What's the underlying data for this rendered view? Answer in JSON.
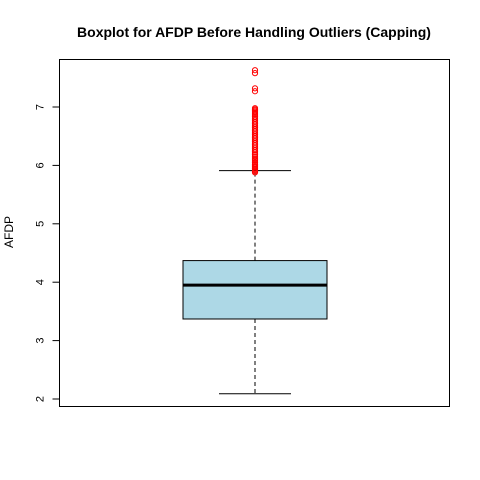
{
  "chart_data": {
    "type": "boxplot",
    "title": "Boxplot for AFDP Before Handling Outliers (Capping)",
    "xlabel": "",
    "ylabel": "AFDP",
    "ylim": [
      1.9,
      7.8
    ],
    "yticks": [
      2,
      3,
      4,
      5,
      6,
      7
    ],
    "grid": false,
    "legend": "none",
    "box": {
      "whisker_low": 2.09,
      "q1": 3.37,
      "median": 3.95,
      "q3": 4.37,
      "whisker_high": 5.91
    },
    "outliers": [
      5.88,
      5.9,
      5.92,
      5.94,
      5.96,
      5.98,
      6.0,
      6.02,
      6.05,
      6.08,
      6.1,
      6.12,
      6.15,
      6.18,
      6.2,
      6.23,
      6.26,
      6.29,
      6.32,
      6.35,
      6.38,
      6.41,
      6.44,
      6.47,
      6.5,
      6.53,
      6.56,
      6.59,
      6.62,
      6.65,
      6.68,
      6.71,
      6.74,
      6.77,
      6.8,
      6.83,
      6.86,
      6.88,
      6.9,
      6.92,
      6.94,
      6.96,
      6.98,
      7.27,
      7.32,
      7.58,
      7.63
    ],
    "colors": {
      "box_fill": "#add8e6",
      "outlier": "#ff0000",
      "line": "#000000"
    }
  }
}
